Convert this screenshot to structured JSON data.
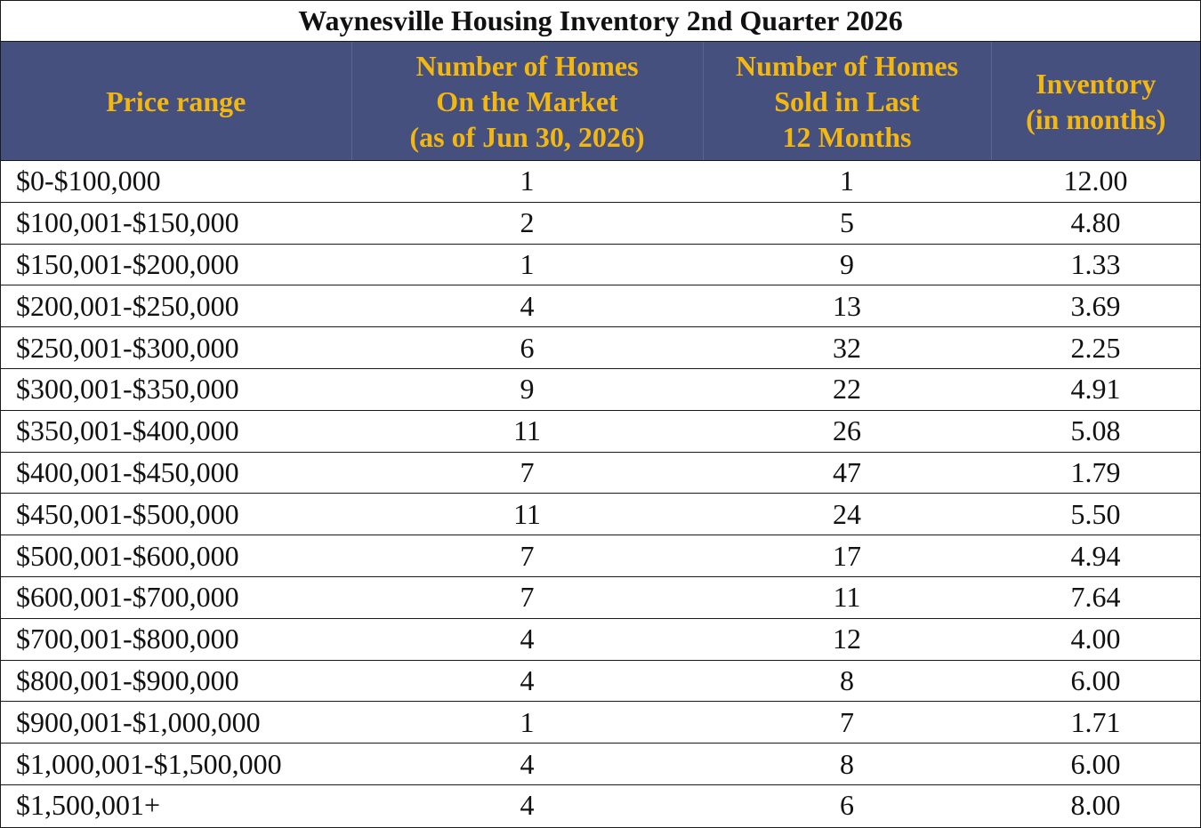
{
  "title": "Waynesville Housing Inventory 2nd Quarter 2026",
  "headers": {
    "price_range": "Price range",
    "on_market": [
      "Number of Homes",
      "On the Market",
      "(as of Jun 30, 2026)"
    ],
    "sold": [
      "Number of Homes",
      "Sold in Last",
      "12 Months"
    ],
    "inventory": [
      "Inventory",
      "(in months)"
    ]
  },
  "rows": [
    {
      "range": "$0-$100,000",
      "on_market": "1",
      "sold": "1",
      "inventory": "12.00"
    },
    {
      "range": "$100,001-$150,000",
      "on_market": "2",
      "sold": "5",
      "inventory": "4.80"
    },
    {
      "range": "$150,001-$200,000",
      "on_market": "1",
      "sold": "9",
      "inventory": "1.33"
    },
    {
      "range": "$200,001-$250,000",
      "on_market": "4",
      "sold": "13",
      "inventory": "3.69"
    },
    {
      "range": "$250,001-$300,000",
      "on_market": "6",
      "sold": "32",
      "inventory": "2.25"
    },
    {
      "range": "$300,001-$350,000",
      "on_market": "9",
      "sold": "22",
      "inventory": "4.91"
    },
    {
      "range": "$350,001-$400,000",
      "on_market": "11",
      "sold": "26",
      "inventory": "5.08"
    },
    {
      "range": "$400,001-$450,000",
      "on_market": "7",
      "sold": "47",
      "inventory": "1.79"
    },
    {
      "range": "$450,001-$500,000",
      "on_market": "11",
      "sold": "24",
      "inventory": "5.50"
    },
    {
      "range": "$500,001-$600,000",
      "on_market": "7",
      "sold": "17",
      "inventory": "4.94"
    },
    {
      "range": "$600,001-$700,000",
      "on_market": "7",
      "sold": "11",
      "inventory": "7.64"
    },
    {
      "range": "$700,001-$800,000",
      "on_market": "4",
      "sold": "12",
      "inventory": "4.00"
    },
    {
      "range": "$800,001-$900,000",
      "on_market": "4",
      "sold": "8",
      "inventory": "6.00"
    },
    {
      "range": "$900,001-$1,000,000",
      "on_market": "1",
      "sold": "7",
      "inventory": "1.71"
    },
    {
      "range": "$1,000,001-$1,500,000",
      "on_market": "4",
      "sold": "8",
      "inventory": "6.00"
    },
    {
      "range": "$1,500,001+",
      "on_market": "4",
      "sold": "6",
      "inventory": "8.00"
    }
  ],
  "colors": {
    "header_bg": "#46507e",
    "header_text": "#f2b711",
    "border": "#1a1a1a"
  }
}
